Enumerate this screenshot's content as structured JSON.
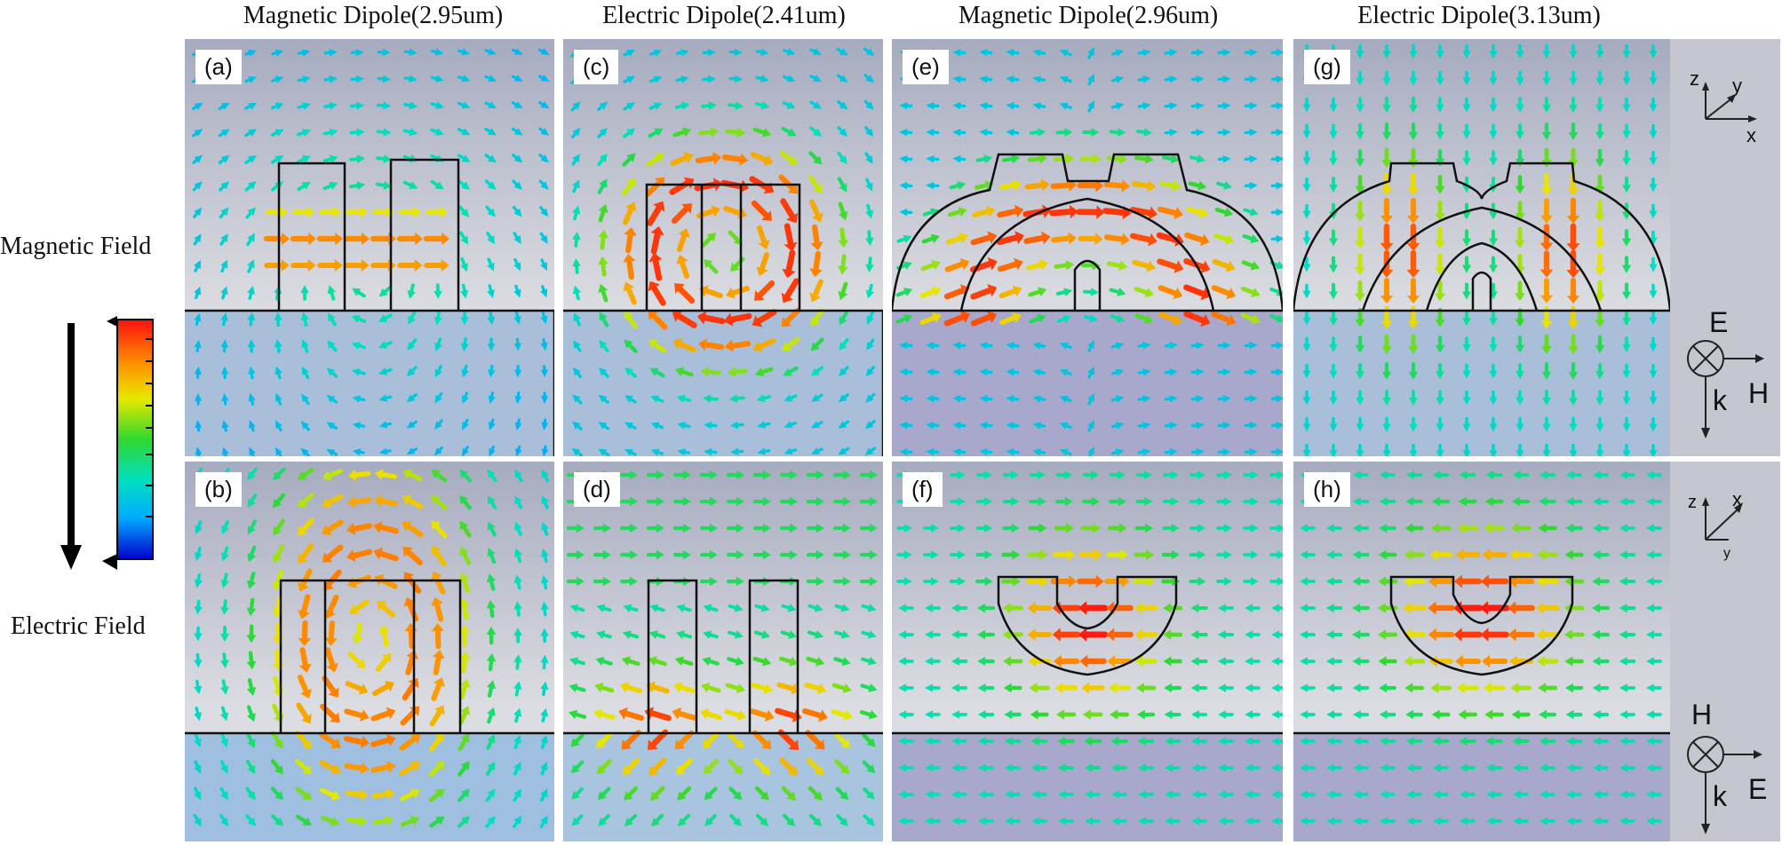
{
  "column_titles": [
    "Magnetic Dipole(2.95um)",
    "Electric Dipole(2.41um)",
    "Magnetic Dipole(2.96um)",
    "Electric Dipole(3.13um)"
  ],
  "row_labels": {
    "top": "Magnetic Field",
    "bottom": "Electric Field"
  },
  "panels": [
    {
      "id": "a",
      "label": "(a)",
      "shape": "two-bars",
      "field": "magnetic-horizontal"
    },
    {
      "id": "c",
      "label": "(c)",
      "shape": "three-bars",
      "field": "magnetic-loop"
    },
    {
      "id": "e",
      "label": "(e)",
      "shape": "dome",
      "field": "magnetic-arc"
    },
    {
      "id": "g",
      "label": "(g)",
      "shape": "dome",
      "field": "magnetic-vertical"
    },
    {
      "id": "b",
      "label": "(b)",
      "shape": "two-bars-wide",
      "field": "electric-loop"
    },
    {
      "id": "d",
      "label": "(d)",
      "shape": "two-bars-tall",
      "field": "electric-corner"
    },
    {
      "id": "f",
      "label": "(f)",
      "shape": "bowl",
      "field": "electric-horizontal"
    },
    {
      "id": "h",
      "label": "(h)",
      "shape": "bowl",
      "field": "electric-horizontal-left"
    }
  ],
  "axes_top": {
    "z": "z",
    "y": "y",
    "x": "x"
  },
  "axes_bottom": {
    "z": "z",
    "x": "x",
    "y": "y"
  },
  "polarization_top": {
    "E": "E",
    "H": "H",
    "k": "k"
  },
  "polarization_bottom": {
    "H": "H",
    "E": "E",
    "k": "k"
  },
  "colormap": [
    "#0000cc",
    "#00aaff",
    "#00e0c0",
    "#30d830",
    "#e8e800",
    "#ff8800",
    "#ff1010"
  ],
  "colors": {
    "panel_top_bg": "#a6abbf",
    "panel_mid_bg": "#dcdde2",
    "substrate_top": "#a9bfd9",
    "substrate_purple": "#a8a8cc",
    "outline": "#111111"
  }
}
